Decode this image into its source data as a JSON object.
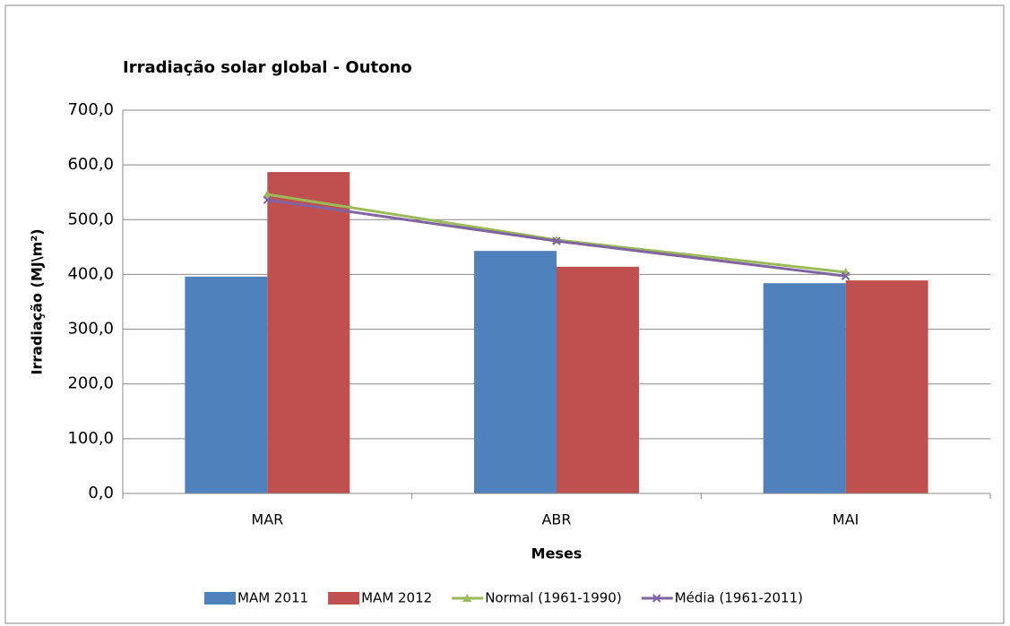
{
  "chart_data": {
    "type": "bar",
    "title": "Irradiação solar global - Outono",
    "x_label": "Meses",
    "y_label": "Irradiação (MJ\\m²)",
    "categories": [
      "MAR",
      "ABR",
      "MAI"
    ],
    "series": [
      {
        "name": "MAM 2011",
        "type": "bar",
        "color": "#4f81bd",
        "values": [
          396,
          443,
          384
        ]
      },
      {
        "name": "MAM 2012",
        "type": "bar",
        "color": "#c0504d",
        "values": [
          587,
          414,
          389
        ]
      },
      {
        "name": "Normal (1961-1990)",
        "type": "line",
        "marker": "triangle",
        "color": "#9bbb59",
        "values": [
          546,
          463,
          404
        ]
      },
      {
        "name": "Média (1961-2011)",
        "type": "line",
        "marker": "x",
        "color": "#8064a2",
        "values": [
          536,
          461,
          397
        ]
      }
    ],
    "ylim": [
      0,
      700
    ],
    "yticks": [
      {
        "value": 0,
        "label": "0,0"
      },
      {
        "value": 100,
        "label": "100,0"
      },
      {
        "value": 200,
        "label": "200,0"
      },
      {
        "value": 300,
        "label": "300,0"
      },
      {
        "value": 400,
        "label": "400,0"
      },
      {
        "value": 500,
        "label": "500,0"
      },
      {
        "value": 600,
        "label": "600,0"
      },
      {
        "value": 700,
        "label": "700,0"
      }
    ],
    "grid": true,
    "legend": "bottom"
  }
}
